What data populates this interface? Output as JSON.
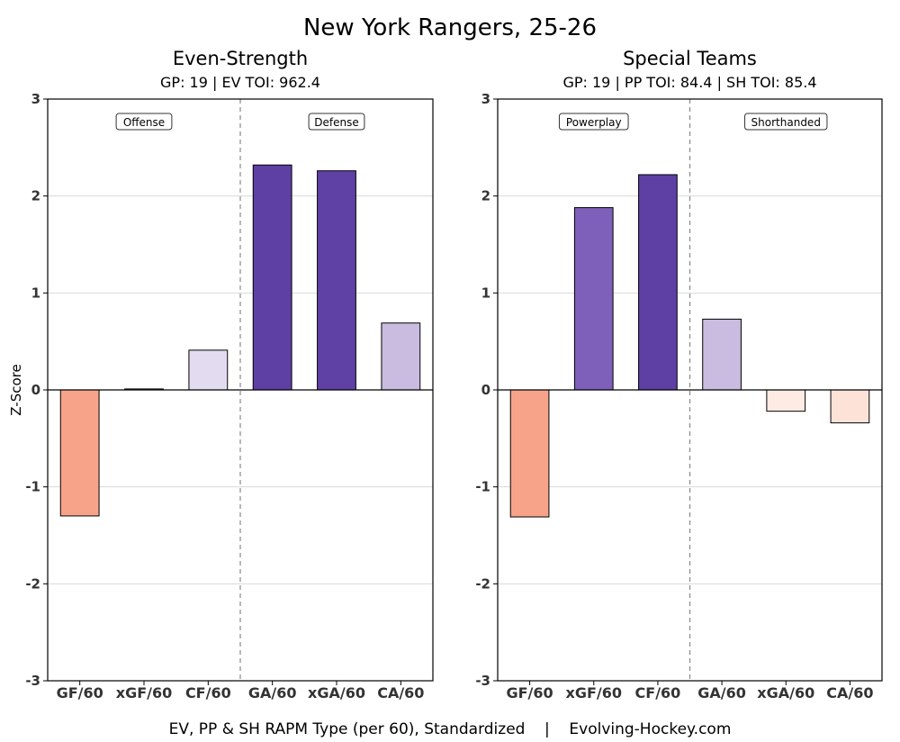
{
  "title": "New York Rangers, 25-26",
  "caption": "EV, PP & SH RAPM Type (per 60), Standardized    |    Evolving-Hockey.com",
  "ylabel": "Z-Score",
  "ytick_labels": [
    "3",
    "2",
    "1",
    "0",
    "-1",
    "-2",
    "-3"
  ],
  "chart_data": [
    {
      "type": "bar",
      "title": "Even-Strength",
      "subtitle": "GP: 19 | EV TOI: 962.4",
      "ylabel": "Z-Score",
      "ylim": [
        -3,
        3
      ],
      "grid": true,
      "categories": [
        "GF/60",
        "xGF/60",
        "CF/60",
        "GA/60",
        "xGA/60",
        "CA/60"
      ],
      "values": [
        -1.3,
        0.01,
        0.41,
        2.32,
        2.26,
        0.69
      ],
      "colors": [
        "#f7a38a",
        "#dcd1ea",
        "#e3dbf0",
        "#5e3fa3",
        "#5f40a5",
        "#cabbe0"
      ],
      "sections": [
        "Offense",
        "Defense"
      ]
    },
    {
      "type": "bar",
      "title": "Special Teams",
      "subtitle": "GP: 19 | PP TOI: 84.4 | SH TOI: 85.4",
      "ylabel": "",
      "ylim": [
        -3,
        3
      ],
      "grid": true,
      "categories": [
        "GF/60",
        "xGF/60",
        "CF/60",
        "GA/60",
        "xGA/60",
        "CA/60"
      ],
      "values": [
        -1.31,
        1.88,
        2.22,
        0.73,
        -0.22,
        -0.34
      ],
      "colors": [
        "#f7a38a",
        "#7e5fb9",
        "#5e3fa3",
        "#cabbe0",
        "#fdebe4",
        "#fde2d8"
      ],
      "sections": [
        "Powerplay",
        "Shorthanded"
      ]
    }
  ]
}
